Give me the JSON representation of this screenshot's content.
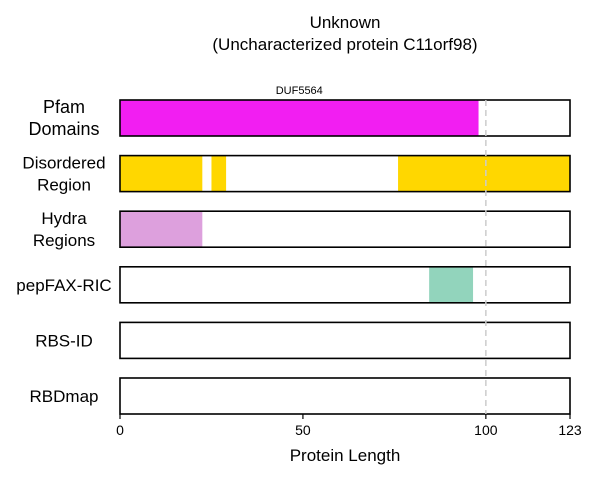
{
  "chart_data": {
    "type": "bar",
    "title_lines": [
      "Unknown",
      "(Uncharacterized protein C11orf98)"
    ],
    "xlabel": "Protein Length",
    "xlim": [
      0,
      123
    ],
    "xticks": [
      0,
      50,
      100,
      123
    ],
    "reference_line_x": 100,
    "grid": false,
    "tracks": [
      {
        "label_lines": [
          "Pfam",
          "Domains"
        ],
        "segments": [
          {
            "start": 0,
            "end": 98,
            "color": "#f21ef2",
            "label": "DUF5564"
          }
        ]
      },
      {
        "label_lines": [
          "Disordered",
          "Region"
        ],
        "segments": [
          {
            "start": 0,
            "end": 22.5,
            "color": "#ffd700"
          },
          {
            "start": 25,
            "end": 29,
            "color": "#ffd700"
          },
          {
            "start": 76,
            "end": 123,
            "color": "#ffd700"
          }
        ]
      },
      {
        "label_lines": [
          "Hydra",
          "Regions"
        ],
        "segments": [
          {
            "start": 0,
            "end": 22.5,
            "color": "#dda0dd"
          }
        ]
      },
      {
        "label_lines": [
          "pepFAX-RIC"
        ],
        "segments": [
          {
            "start": 84.5,
            "end": 96.5,
            "color": "#92d4bc"
          }
        ]
      },
      {
        "label_lines": [
          "RBS-ID"
        ],
        "segments": []
      },
      {
        "label_lines": [
          "RBDmap"
        ],
        "segments": []
      }
    ]
  }
}
